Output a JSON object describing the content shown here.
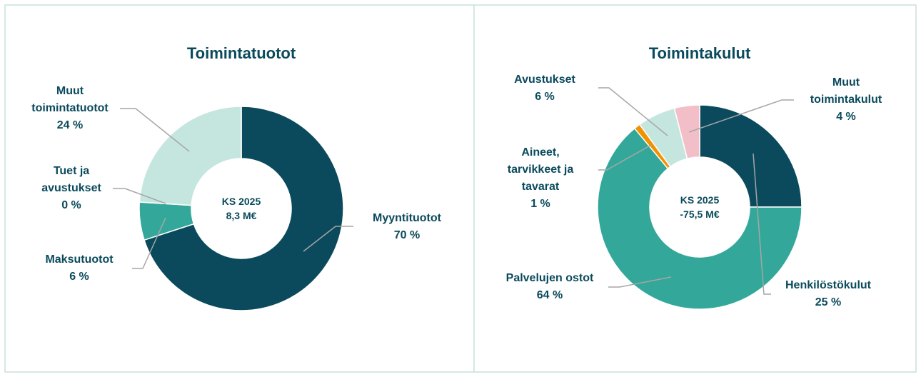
{
  "chart_data": [
    {
      "type": "donut",
      "title": "Toimintatuotot",
      "center_text": [
        "KS 2025",
        "8,3 M€"
      ],
      "categories": [
        "Myyntituotot",
        "Maksutuotot",
        "Tuet ja avustukset",
        "Muut toimintatuotot"
      ],
      "values": [
        70,
        6,
        0,
        24
      ],
      "value_labels": [
        "70 %",
        "6 %",
        "0 %",
        "24 %"
      ],
      "colors": [
        "#0a4a5c",
        "#33a89a",
        "#33a89a",
        "#c5e6df"
      ]
    },
    {
      "type": "donut",
      "title": "Toimintakulut",
      "center_text": [
        "KS 2025",
        "-75,5 M€"
      ],
      "categories": [
        "Henkilöstökulut",
        "Palvelujen ostot",
        "Aineet, tarvikkeet ja tavarat",
        "Avustukset",
        "Muut toimintakulut"
      ],
      "values": [
        25,
        64,
        1,
        6,
        4
      ],
      "value_labels": [
        "25 %",
        "64 %",
        "1 %",
        "6 %",
        "4 %"
      ],
      "colors": [
        "#0a4a5c",
        "#33a89a",
        "#f39200",
        "#c5e6df",
        "#f2bfc9"
      ]
    }
  ]
}
